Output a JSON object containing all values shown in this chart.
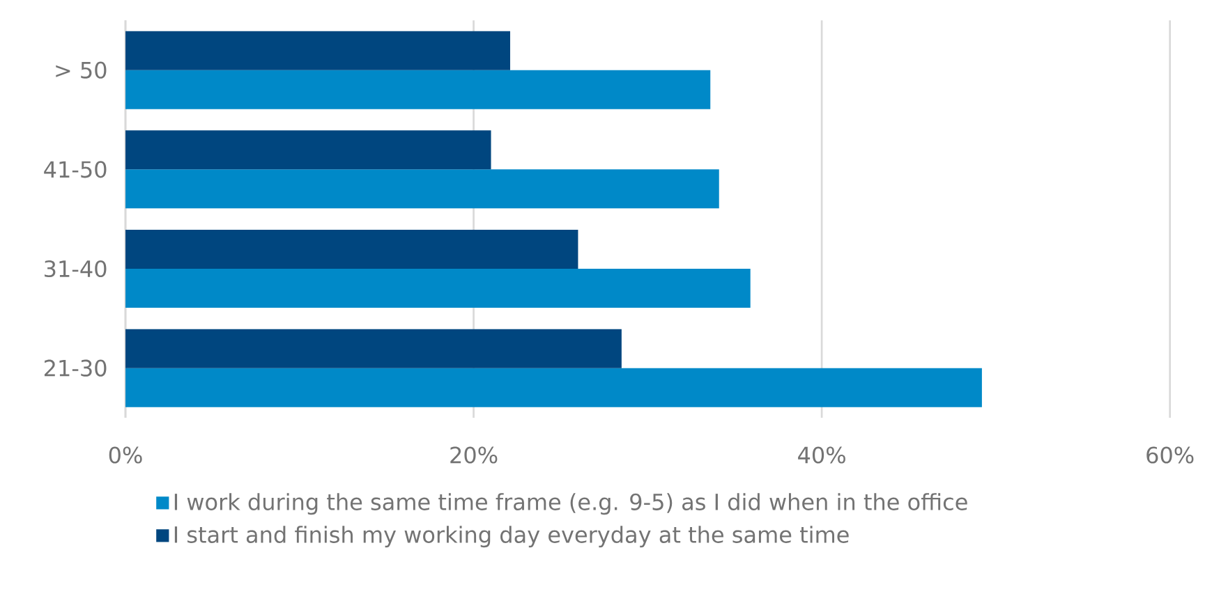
{
  "chart_data": {
    "type": "bar",
    "orientation": "horizontal",
    "categories": [
      "> 50",
      "41-50",
      "31-40",
      "21-30"
    ],
    "series": [
      {
        "name": "I work during the same time frame (e.g. 9-5) as I did when in the office",
        "color": "#0089c8",
        "values": [
          33.6,
          34.1,
          35.9,
          49.2
        ]
      },
      {
        "name": "I start and finish my working day everyday at the same time",
        "color": "#00467f",
        "values": [
          22.1,
          21.0,
          26.0,
          28.5
        ]
      }
    ],
    "xlim": [
      0,
      60
    ],
    "xticks": [
      {
        "value": 0,
        "label": "0%"
      },
      {
        "value": 20,
        "label": "20%"
      },
      {
        "value": 40,
        "label": "40%"
      },
      {
        "value": 60,
        "label": "60%"
      }
    ],
    "grid": "x",
    "legend": "bottom"
  }
}
